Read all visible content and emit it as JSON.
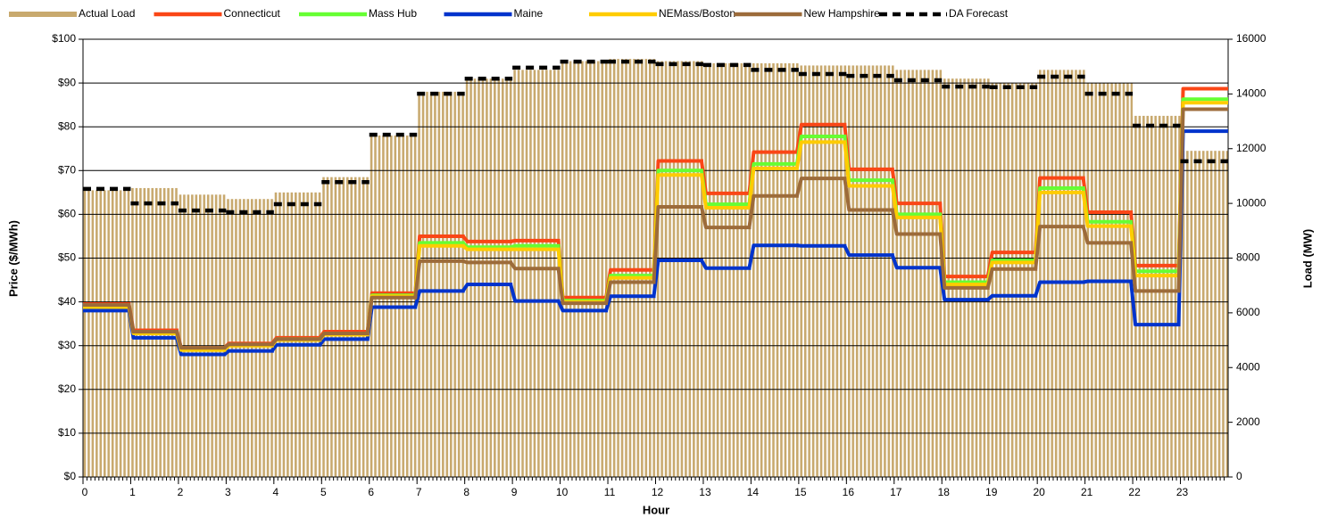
{
  "chart_data": {
    "type": "line",
    "xlabel": "Hour",
    "ylabel": "Price ($/MWh)",
    "y2label": "Load (MW)",
    "x": [
      0,
      1,
      2,
      3,
      4,
      5,
      6,
      7,
      8,
      9,
      10,
      11,
      12,
      13,
      14,
      15,
      16,
      17,
      18,
      19,
      20,
      21,
      22,
      23
    ],
    "xlim": [
      0,
      24
    ],
    "xticks": [
      0,
      1,
      2,
      3,
      4,
      5,
      6,
      7,
      8,
      9,
      10,
      11,
      12,
      13,
      14,
      15,
      16,
      17,
      18,
      19,
      20,
      21,
      22,
      23
    ],
    "ylim": [
      0,
      100
    ],
    "yticks": [
      {
        "value": 0,
        "label": "$0"
      },
      {
        "value": 10,
        "label": "$10"
      },
      {
        "value": 20,
        "label": "$20"
      },
      {
        "value": 30,
        "label": "$30"
      },
      {
        "value": 40,
        "label": "$40"
      },
      {
        "value": 50,
        "label": "$50"
      },
      {
        "value": 60,
        "label": "$60"
      },
      {
        "value": 70,
        "label": "$70"
      },
      {
        "value": 80,
        "label": "$80"
      },
      {
        "value": 90,
        "label": "$90"
      },
      {
        "value": 100,
        "label": "$100"
      }
    ],
    "y2lim": [
      0,
      16000
    ],
    "y2ticks": [
      0,
      2000,
      4000,
      6000,
      8000,
      10000,
      12000,
      14000,
      16000
    ],
    "grid": true,
    "legend": "top",
    "series": [
      {
        "name": "Actual Load",
        "color": "#c8a96e",
        "axis": "y2",
        "mark": "bar",
        "values": [
          10480,
          10560,
          10320,
          10160,
          10400,
          10960,
          12480,
          14080,
          14560,
          14880,
          15200,
          15280,
          15200,
          15120,
          15120,
          15040,
          15040,
          14880,
          14560,
          14400,
          14880,
          14400,
          13200,
          11920
        ]
      },
      {
        "name": "Connecticut",
        "color": "#fa4616",
        "values": [
          39.5,
          33.5,
          29.5,
          30.5,
          31.8,
          33.2,
          42,
          55,
          53.8,
          54,
          41,
          47.3,
          72.2,
          64.8,
          74.2,
          80.5,
          70.3,
          62.5,
          45.8,
          51.3,
          68.3,
          60.5,
          48.3,
          88.7
        ]
      },
      {
        "name": "Mass Hub",
        "color": "#66ff33",
        "values": [
          39,
          33,
          29.2,
          30.2,
          31.5,
          32.8,
          41.5,
          53.5,
          52.5,
          52.8,
          40.3,
          46,
          70,
          62.3,
          71.5,
          77.8,
          67.8,
          60,
          44.5,
          49.5,
          66,
          58.3,
          47,
          86.3
        ]
      },
      {
        "name": "Maine",
        "color": "#0033cc",
        "values": [
          38,
          31.8,
          28,
          28.8,
          30.2,
          31.5,
          38.8,
          42.5,
          44,
          40.2,
          38,
          41.3,
          49.5,
          47.7,
          52.9,
          52.8,
          50.7,
          47.8,
          40.5,
          41.4,
          44.5,
          44.7,
          34.8,
          79
        ]
      },
      {
        "name": "NEMass/Boston",
        "color": "#ffcc00",
        "values": [
          38.8,
          32.8,
          29,
          30,
          31.3,
          32.5,
          41.3,
          52.8,
          52,
          52,
          40,
          45.5,
          69,
          61.5,
          70.5,
          76.5,
          66.5,
          59.3,
          44,
          49,
          65,
          57.3,
          46,
          85.5
        ]
      },
      {
        "name": "New Hampshire",
        "color": "#9c6b3a",
        "values": [
          39.3,
          33.2,
          29.5,
          30.3,
          31.5,
          32.8,
          41,
          49.3,
          49,
          47.6,
          39.7,
          44.5,
          61.7,
          57,
          64.2,
          68.2,
          61,
          55.5,
          43.2,
          47.5,
          57.2,
          53.5,
          42.5,
          84
        ]
      },
      {
        "name": "DA Forecast",
        "color": "#000000",
        "axis": "y2",
        "dash": true,
        "values": [
          10530,
          10000,
          9740,
          9680,
          9970,
          10780,
          12510,
          14010,
          14560,
          14960,
          15180,
          15180,
          15090,
          15060,
          14880,
          14730,
          14660,
          14500,
          14270,
          14250,
          14630,
          14010,
          12840,
          11540
        ]
      }
    ]
  }
}
